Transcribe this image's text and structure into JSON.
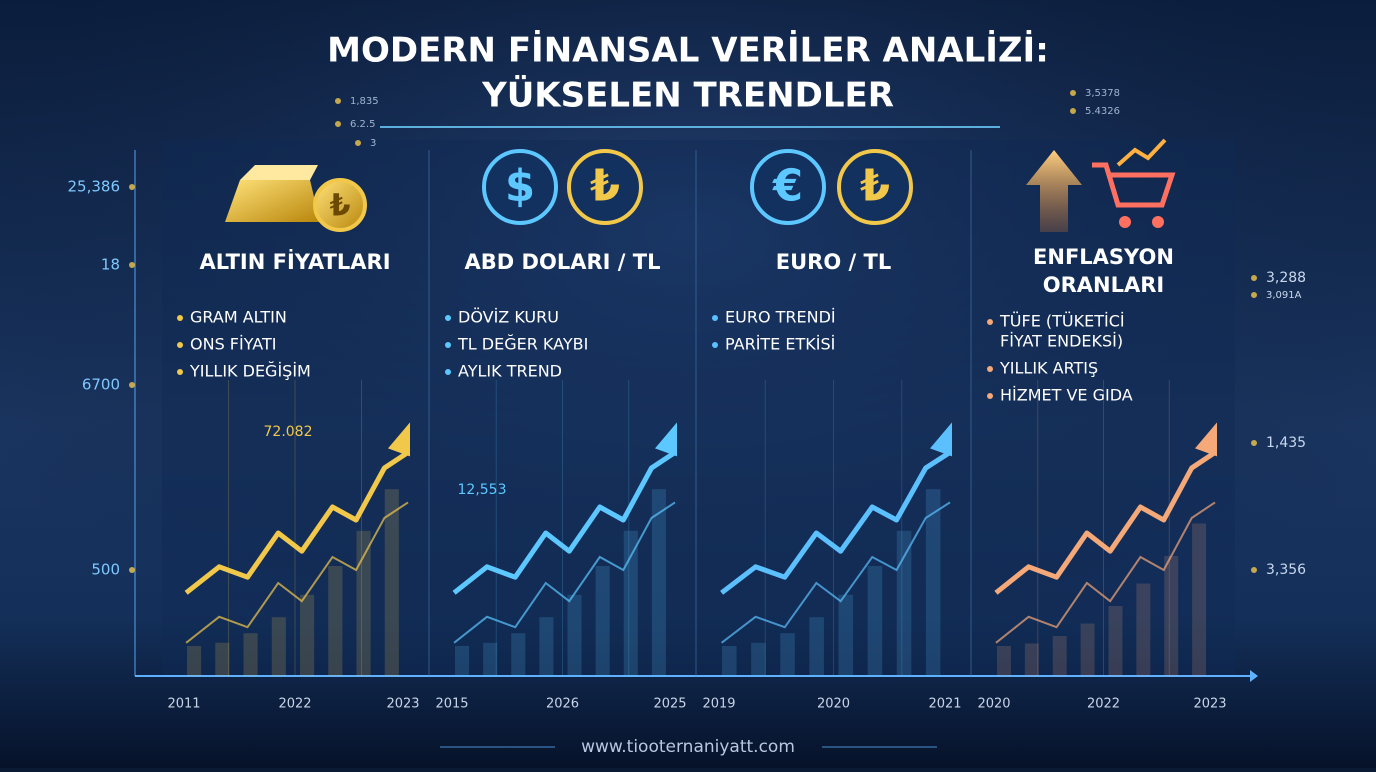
{
  "header": {
    "title": [
      "MODERN FİNANSAL VERİLER ANALİZİ:",
      "YÜKSELEN TRENDLER"
    ]
  },
  "panels": [
    {
      "icons": [
        "₺"
      ],
      "heading": [
        "ALTIN FİYATLARI"
      ],
      "bullets": [
        [
          "GRAM ALTIN"
        ],
        [
          "ONS FİYATI"
        ],
        [
          "YILLIK DEĞİŞİM"
        ]
      ],
      "value_label": "72.082",
      "x_labels": [
        "2011",
        "2022",
        "2023"
      ]
    },
    {
      "icons": [
        "$",
        "₺"
      ],
      "heading": [
        "ABD DOLARI / TL"
      ],
      "bullets": [
        [
          "DÖVİZ KURU"
        ],
        [
          "TL DEĞER KAYBI"
        ],
        [
          "AYLIK TREND"
        ]
      ],
      "value_label": "12,553",
      "x_labels": [
        "2015",
        "2026",
        "2025"
      ]
    },
    {
      "icons": [
        "€",
        "₺"
      ],
      "heading": [
        "EURO / TL"
      ],
      "bullets": [
        [
          "EURO TRENDİ"
        ],
        [
          "PARİTE ETKİSİ"
        ]
      ],
      "x_labels": [
        "2019",
        "2020",
        "2021"
      ]
    },
    {
      "heading": [
        "ENFLASYON",
        "ORANLARI"
      ],
      "bullets": [
        [
          "TÜFE (TÜKETİCİ",
          "FİYAT ENDEKSİ)"
        ],
        [
          "YILLIK ARTIŞ"
        ],
        [
          "HİZMET VE GIDA"
        ]
      ],
      "x_labels": [
        "2020",
        "2022",
        "2023"
      ]
    }
  ],
  "left_labels": [
    "25,386",
    "18",
    "6700",
    "500"
  ],
  "right_labels": [
    "3,288",
    "3,091A",
    "1,435",
    "3,356"
  ],
  "top_left_labels": [
    "1,835",
    "6.2.5",
    "3"
  ],
  "top_right_labels": [
    "3,5378",
    "5.4326"
  ],
  "footer": {
    "url": "www.tiooternaniyatt.com"
  }
}
